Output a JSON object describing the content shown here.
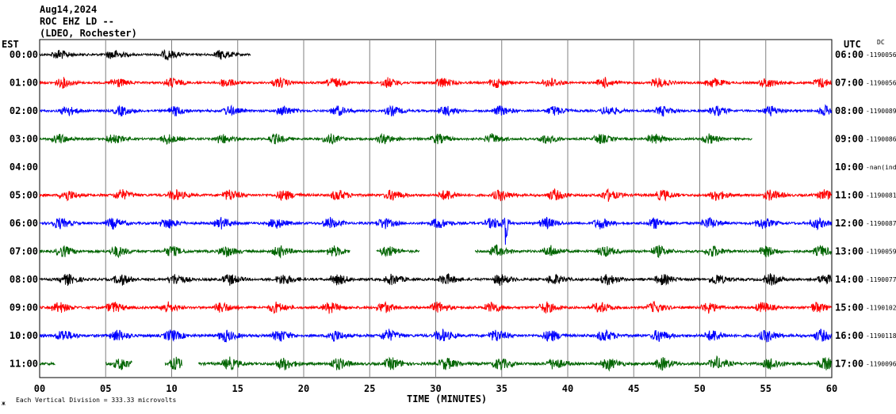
{
  "header": {
    "date": "Aug14,2024",
    "station": "ROC EHZ LD --",
    "network": "(LDEO, Rochester)"
  },
  "chart_data": {
    "type": "line",
    "xlabel": "TIME (MINUTES)",
    "xlim": [
      0,
      60
    ],
    "x_ticks": [
      "00",
      "05",
      "10",
      "15",
      "20",
      "25",
      "30",
      "35",
      "40",
      "45",
      "50",
      "55",
      "60"
    ],
    "left_axis_label": "EST",
    "right_axis_label": "UTC",
    "dc_label": "DC",
    "scale_note": "Each Vertical Division = 333.33 microvolts",
    "corner_mark": "ж",
    "grid": true,
    "rows": [
      {
        "est": "00:00",
        "utc": "06:00",
        "dc": "-1190056",
        "color": "#000000",
        "start_min": 0,
        "end_min": 16,
        "amplitude": 0.9
      },
      {
        "est": "01:00",
        "utc": "07:00",
        "dc": "-1190056",
        "color": "#ff0000",
        "start_min": 0,
        "end_min": 60,
        "amplitude": 0.9
      },
      {
        "est": "02:00",
        "utc": "08:00",
        "dc": "-1190089",
        "color": "#0000ff",
        "start_min": 0,
        "end_min": 60,
        "amplitude": 0.9
      },
      {
        "est": "03:00",
        "utc": "09:00",
        "dc": "-1190086",
        "color": "#006400",
        "start_min": 0,
        "end_min": 54,
        "amplitude": 0.9
      },
      {
        "est": "04:00",
        "utc": "10:00",
        "dc": "-nan(ind)",
        "color": "#000000",
        "start_min": 0,
        "end_min": 0,
        "amplitude": 0
      },
      {
        "est": "05:00",
        "utc": "11:00",
        "dc": "-1190081",
        "color": "#ff0000",
        "start_min": 0,
        "end_min": 60,
        "amplitude": 1.0
      },
      {
        "est": "06:00",
        "utc": "12:00",
        "dc": "-1190087",
        "color": "#0000ff",
        "start_min": 0,
        "end_min": 60,
        "amplitude": 1.0
      },
      {
        "est": "07:00",
        "utc": "13:00",
        "dc": "-1190059",
        "color": "#006400",
        "start_min": 0,
        "end_min": 60,
        "amplitude": 1.0
      },
      {
        "est": "08:00",
        "utc": "14:00",
        "dc": "-1190077",
        "color": "#000000",
        "start_min": 0,
        "end_min": 60,
        "amplitude": 1.0
      },
      {
        "est": "09:00",
        "utc": "15:00",
        "dc": "-1190102",
        "color": "#ff0000",
        "start_min": 0,
        "end_min": 60,
        "amplitude": 1.0
      },
      {
        "est": "10:00",
        "utc": "16:00",
        "dc": "-1190118",
        "color": "#0000ff",
        "start_min": 0,
        "end_min": 60,
        "amplitude": 1.1
      },
      {
        "est": "11:00",
        "utc": "17:00",
        "dc": "-1190096",
        "color": "#006400",
        "start_min": 0,
        "end_min": 60,
        "amplitude": 1.1
      }
    ],
    "gaps": [
      {
        "row": "07:00",
        "from_min": 23.5,
        "to_min": 25.5
      },
      {
        "row": "07:00",
        "from_min": 28.8,
        "to_min": 33
      },
      {
        "row": "11:00",
        "from_min": 1.2,
        "to_min": 5
      },
      {
        "row": "11:00",
        "from_min": 7,
        "to_min": 9.5
      },
      {
        "row": "11:00",
        "from_min": 10.8,
        "to_min": 12
      }
    ],
    "event": {
      "row": "06:00",
      "time_min": 35.3,
      "note": "large spike"
    }
  }
}
